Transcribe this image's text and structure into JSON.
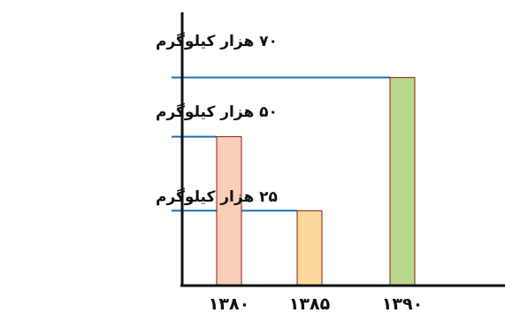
{
  "chart_data": {
    "type": "bar",
    "categories": [
      "۱۳۸۰",
      "۱۳۸۵",
      "۱۳۹۰"
    ],
    "values": [
      50,
      25,
      70
    ],
    "value_labels": [
      "۵۰ هزار کیلوگرم",
      "۲۵ هزار کیلوگرم",
      "۷۰ هزار کیلوگرم"
    ],
    "title": "",
    "xlabel": "",
    "ylabel": "",
    "ylim": [
      0,
      92
    ],
    "grid": false,
    "legend": "none",
    "colors": {
      "bars": [
        "#F9CFB7",
        "#FCD99A",
        "#B8D98B"
      ],
      "bar_outline": "#8a1a1a",
      "leader_lines": "#1a6fb5",
      "axis": "#111111",
      "text": "#111111"
    }
  }
}
